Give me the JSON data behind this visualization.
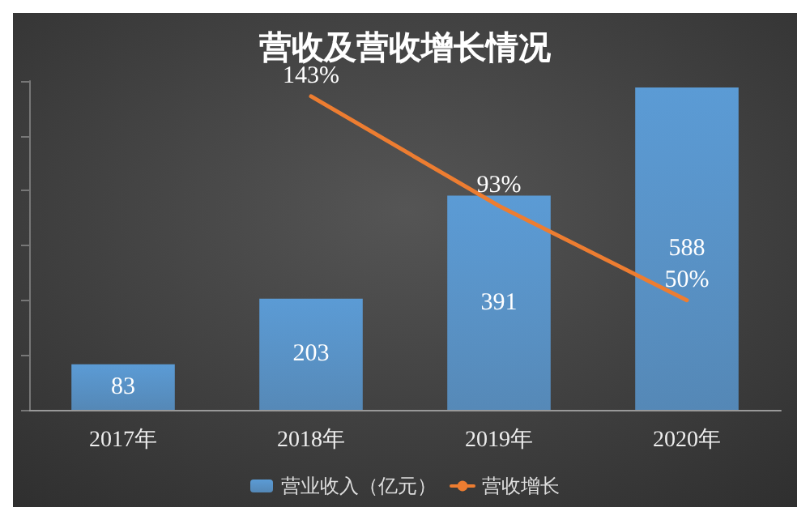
{
  "chart_data": {
    "type": "bar",
    "title": "营收及营收增长情况",
    "categories": [
      "2017年",
      "2018年",
      "2019年",
      "2020年"
    ],
    "series": [
      {
        "name": "营业收入（亿元）",
        "color": "#5b9bd5",
        "values": [
          83,
          203,
          391,
          588
        ]
      },
      {
        "name": "营收增长",
        "type": "line",
        "axis": "y2",
        "color": "#ed7d31",
        "values": [
          null,
          143,
          93,
          50
        ],
        "value_labels": [
          null,
          "143%",
          "93%",
          "50%"
        ]
      }
    ],
    "data_labels": true,
    "tick_labels": "x",
    "grid": false,
    "legend": "bottom",
    "marker": "none",
    "line_style": "solid"
  }
}
